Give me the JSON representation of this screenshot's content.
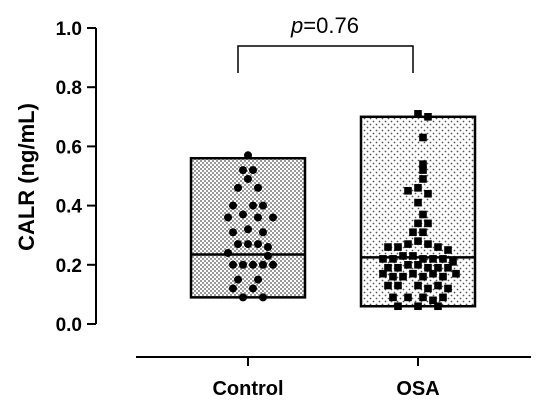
{
  "chart_data": {
    "type": "bar",
    "ylabel": "CALR (ng/mL)",
    "ylim": [
      0,
      1.0
    ],
    "yticks": [
      "0.0",
      "0.2",
      "0.4",
      "0.6",
      "0.8",
      "1.0"
    ],
    "categories": [
      "Control",
      "OSA"
    ],
    "annotation": {
      "prefix": "p",
      "text": "=0.76"
    },
    "series": [
      {
        "category": "Control",
        "min": 0.09,
        "max": 0.56,
        "median": 0.235,
        "marker": "circle",
        "fill_pattern": "checker",
        "points": [
          {
            "x": 0.0,
            "y": 0.57
          },
          {
            "x": -0.05,
            "y": 0.52
          },
          {
            "x": 0.05,
            "y": 0.52
          },
          {
            "x": 0.0,
            "y": 0.49
          },
          {
            "x": -0.1,
            "y": 0.46
          },
          {
            "x": 0.1,
            "y": 0.46
          },
          {
            "x": -0.15,
            "y": 0.4
          },
          {
            "x": 0.05,
            "y": 0.4
          },
          {
            "x": 0.15,
            "y": 0.4
          },
          {
            "x": -0.2,
            "y": 0.36
          },
          {
            "x": -0.05,
            "y": 0.37
          },
          {
            "x": 0.1,
            "y": 0.36
          },
          {
            "x": 0.25,
            "y": 0.36
          },
          {
            "x": -0.15,
            "y": 0.31
          },
          {
            "x": 0.0,
            "y": 0.32
          },
          {
            "x": 0.15,
            "y": 0.31
          },
          {
            "x": -0.1,
            "y": 0.27
          },
          {
            "x": 0.0,
            "y": 0.27
          },
          {
            "x": 0.1,
            "y": 0.27
          },
          {
            "x": 0.2,
            "y": 0.26
          },
          {
            "x": -0.2,
            "y": 0.24
          },
          {
            "x": 0.2,
            "y": 0.23
          },
          {
            "x": -0.15,
            "y": 0.2
          },
          {
            "x": -0.05,
            "y": 0.2
          },
          {
            "x": 0.05,
            "y": 0.2
          },
          {
            "x": 0.15,
            "y": 0.2
          },
          {
            "x": 0.25,
            "y": 0.2
          },
          {
            "x": -0.1,
            "y": 0.15
          },
          {
            "x": 0.1,
            "y": 0.15
          },
          {
            "x": -0.15,
            "y": 0.12
          },
          {
            "x": 0.05,
            "y": 0.12
          },
          {
            "x": -0.05,
            "y": 0.09
          },
          {
            "x": 0.15,
            "y": 0.09
          }
        ]
      },
      {
        "category": "OSA",
        "min": 0.06,
        "max": 0.7,
        "median": 0.225,
        "marker": "square",
        "fill_pattern": "dots",
        "points": [
          {
            "x": 0.0,
            "y": 0.71
          },
          {
            "x": 0.1,
            "y": 0.7
          },
          {
            "x": 0.05,
            "y": 0.63
          },
          {
            "x": 0.05,
            "y": 0.54
          },
          {
            "x": 0.05,
            "y": 0.52
          },
          {
            "x": 0.05,
            "y": 0.49
          },
          {
            "x": -0.1,
            "y": 0.45
          },
          {
            "x": 0.0,
            "y": 0.46
          },
          {
            "x": 0.1,
            "y": 0.44
          },
          {
            "x": 0.0,
            "y": 0.41
          },
          {
            "x": 0.05,
            "y": 0.37
          },
          {
            "x": 0.0,
            "y": 0.34
          },
          {
            "x": 0.1,
            "y": 0.34
          },
          {
            "x": -0.05,
            "y": 0.31
          },
          {
            "x": 0.05,
            "y": 0.31
          },
          {
            "x": -0.1,
            "y": 0.27
          },
          {
            "x": 0.0,
            "y": 0.28
          },
          {
            "x": 0.1,
            "y": 0.27
          },
          {
            "x": -0.3,
            "y": 0.26
          },
          {
            "x": -0.2,
            "y": 0.26
          },
          {
            "x": 0.2,
            "y": 0.26
          },
          {
            "x": 0.3,
            "y": 0.25
          },
          {
            "x": -0.35,
            "y": 0.22
          },
          {
            "x": -0.25,
            "y": 0.22
          },
          {
            "x": -0.15,
            "y": 0.23
          },
          {
            "x": -0.05,
            "y": 0.23
          },
          {
            "x": 0.05,
            "y": 0.22
          },
          {
            "x": 0.15,
            "y": 0.22
          },
          {
            "x": 0.25,
            "y": 0.22
          },
          {
            "x": 0.35,
            "y": 0.21
          },
          {
            "x": -0.3,
            "y": 0.19
          },
          {
            "x": -0.2,
            "y": 0.19
          },
          {
            "x": -0.1,
            "y": 0.2
          },
          {
            "x": 0.0,
            "y": 0.2
          },
          {
            "x": 0.1,
            "y": 0.19
          },
          {
            "x": 0.2,
            "y": 0.19
          },
          {
            "x": 0.3,
            "y": 0.19
          },
          {
            "x": -0.35,
            "y": 0.17
          },
          {
            "x": -0.25,
            "y": 0.16
          },
          {
            "x": -0.15,
            "y": 0.16
          },
          {
            "x": -0.05,
            "y": 0.17
          },
          {
            "x": 0.05,
            "y": 0.16
          },
          {
            "x": 0.15,
            "y": 0.17
          },
          {
            "x": 0.25,
            "y": 0.16
          },
          {
            "x": 0.38,
            "y": 0.17
          },
          {
            "x": -0.3,
            "y": 0.13
          },
          {
            "x": -0.2,
            "y": 0.13
          },
          {
            "x": 0.0,
            "y": 0.13
          },
          {
            "x": 0.1,
            "y": 0.12
          },
          {
            "x": 0.2,
            "y": 0.13
          },
          {
            "x": 0.3,
            "y": 0.12
          },
          {
            "x": -0.25,
            "y": 0.09
          },
          {
            "x": -0.1,
            "y": 0.09
          },
          {
            "x": 0.05,
            "y": 0.09
          },
          {
            "x": 0.15,
            "y": 0.08
          },
          {
            "x": 0.25,
            "y": 0.09
          },
          {
            "x": -0.2,
            "y": 0.06
          },
          {
            "x": 0.0,
            "y": 0.06
          },
          {
            "x": 0.2,
            "y": 0.06
          }
        ]
      }
    ]
  }
}
